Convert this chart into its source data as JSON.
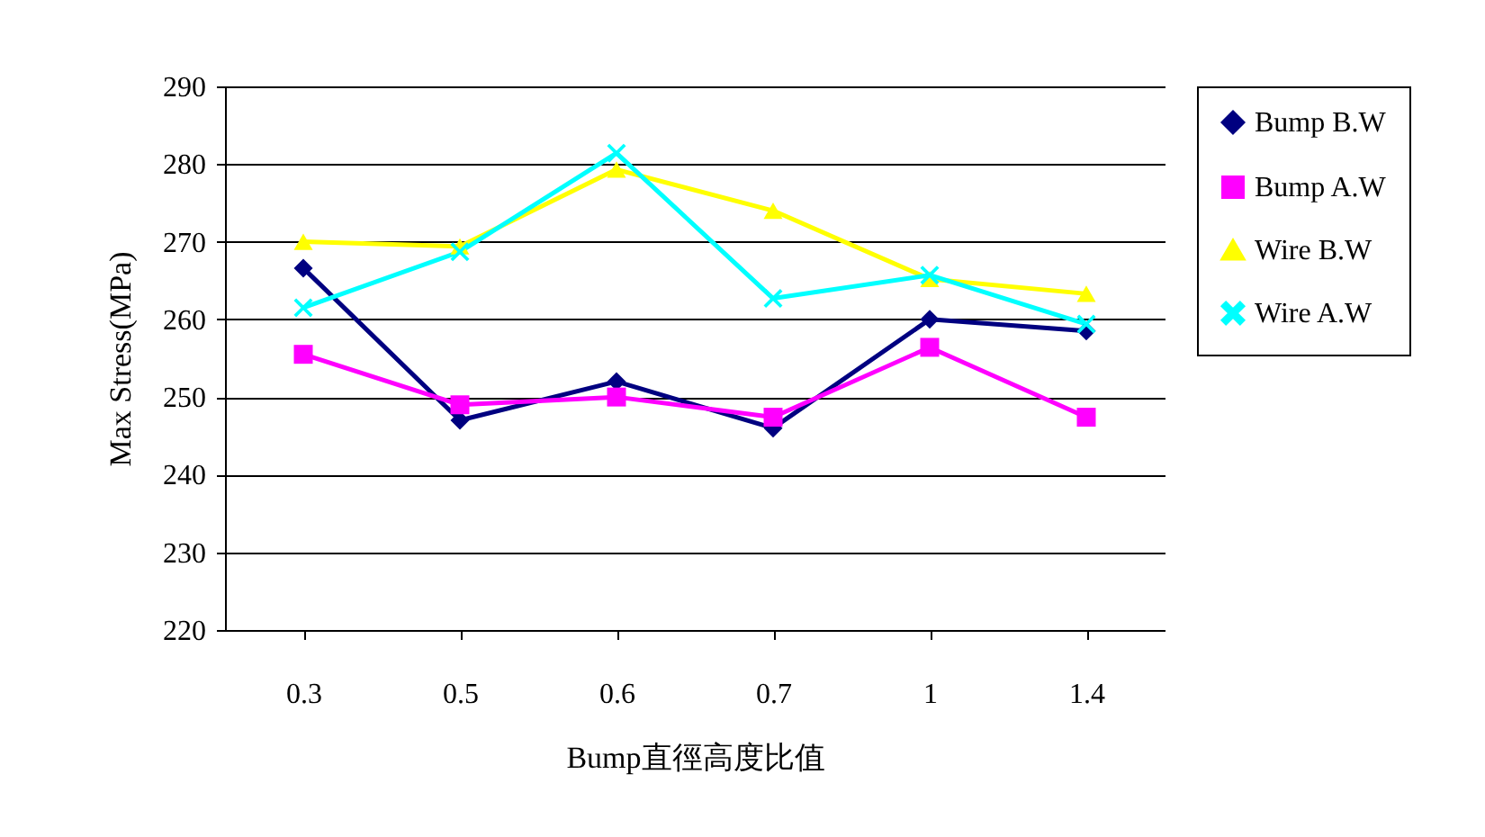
{
  "chart_data": {
    "type": "line",
    "xlabel": "Bump直徑高度比值",
    "ylabel": "Max Stress(MPa)",
    "categories": [
      "0.3",
      "0.5",
      "0.6",
      "0.7",
      "1",
      "1.4"
    ],
    "series": [
      {
        "name": "Bump B.W",
        "color": "#000080",
        "marker": "diamond",
        "values": [
          266.6,
          247,
          252,
          246,
          260,
          258.5
        ]
      },
      {
        "name": "Bump A.W",
        "color": "#ff00ff",
        "marker": "square",
        "values": [
          255.5,
          249,
          250,
          247.4,
          256.4,
          247.4
        ]
      },
      {
        "name": "Wire B.W",
        "color": "#ffff00",
        "marker": "triangle",
        "values": [
          270,
          269.4,
          279.3,
          274,
          265.2,
          263.3
        ]
      },
      {
        "name": "Wire A.W",
        "color": "#00ffff",
        "marker": "cross",
        "values": [
          261.5,
          268.7,
          281.4,
          262.7,
          265.7,
          259.4
        ]
      }
    ],
    "ylim": [
      220,
      290
    ],
    "yticks": [
      220,
      230,
      240,
      250,
      260,
      270,
      280,
      290
    ],
    "grid": "y",
    "legend": "right",
    "line_style": "solid"
  }
}
